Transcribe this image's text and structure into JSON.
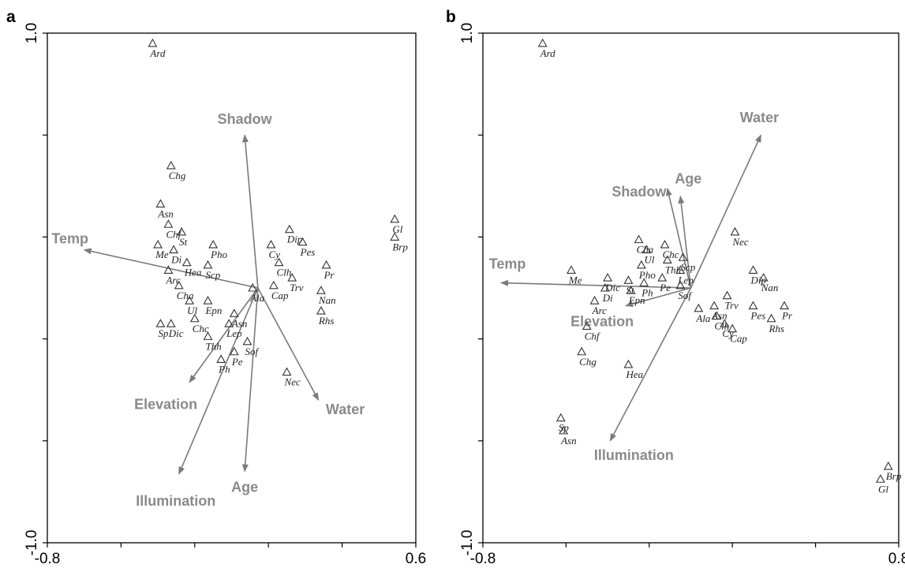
{
  "chart_data": [
    {
      "type": "scatter",
      "panel": "a",
      "xlim": [
        -0.8,
        0.6
      ],
      "ylim": [
        -1.0,
        1.0
      ],
      "x_tick_labels": [
        "-0.8",
        "0.6"
      ],
      "y_tick_labels": [
        "1.0",
        "-1.0"
      ],
      "vectors": [
        {
          "name": "Shadow",
          "x": -0.05,
          "y": 0.6
        },
        {
          "name": "Temp",
          "x": -0.66,
          "y": 0.15
        },
        {
          "name": "Elevation",
          "x": -0.26,
          "y": -0.37
        },
        {
          "name": "Illumination",
          "x": -0.3,
          "y": -0.73
        },
        {
          "name": "Age",
          "x": -0.05,
          "y": -0.72
        },
        {
          "name": "Water",
          "x": 0.23,
          "y": -0.44
        }
      ],
      "species": [
        {
          "label": "Ard",
          "x": -0.4,
          "y": 0.96
        },
        {
          "label": "Chg",
          "x": -0.33,
          "y": 0.48
        },
        {
          "label": "Asn",
          "x": -0.37,
          "y": 0.33
        },
        {
          "label": "Chf",
          "x": -0.34,
          "y": 0.25
        },
        {
          "label": "St",
          "x": -0.29,
          "y": 0.22
        },
        {
          "label": "Me",
          "x": -0.38,
          "y": 0.17
        },
        {
          "label": "Di",
          "x": -0.32,
          "y": 0.15
        },
        {
          "label": "Pho",
          "x": -0.17,
          "y": 0.17
        },
        {
          "label": "Hea",
          "x": -0.27,
          "y": 0.1
        },
        {
          "label": "Scp",
          "x": -0.19,
          "y": 0.09
        },
        {
          "label": "Arc",
          "x": -0.34,
          "y": 0.07
        },
        {
          "label": "Cha",
          "x": -0.3,
          "y": 0.01
        },
        {
          "label": "Ul",
          "x": -0.26,
          "y": -0.05
        },
        {
          "label": "Epn",
          "x": -0.19,
          "y": -0.05
        },
        {
          "label": "Sp",
          "x": -0.37,
          "y": -0.14
        },
        {
          "label": "Dic",
          "x": -0.33,
          "y": -0.14
        },
        {
          "label": "Chc",
          "x": -0.24,
          "y": -0.12
        },
        {
          "label": "Thh",
          "x": -0.19,
          "y": -0.19
        },
        {
          "label": "Lep",
          "x": -0.11,
          "y": -0.14
        },
        {
          "label": "Ph",
          "x": -0.14,
          "y": -0.28
        },
        {
          "label": "Pe",
          "x": -0.09,
          "y": -0.25
        },
        {
          "label": "Ala",
          "x": -0.02,
          "y": 0.0
        },
        {
          "label": "Asn",
          "x": -0.09,
          "y": -0.1
        },
        {
          "label": "Sof",
          "x": -0.04,
          "y": -0.21
        },
        {
          "label": "Cy",
          "x": 0.05,
          "y": 0.17
        },
        {
          "label": "Clh",
          "x": 0.08,
          "y": 0.1
        },
        {
          "label": "Dip",
          "x": 0.12,
          "y": 0.23
        },
        {
          "label": "Pes",
          "x": 0.17,
          "y": 0.18
        },
        {
          "label": "Trv",
          "x": 0.13,
          "y": 0.04
        },
        {
          "label": "Cap",
          "x": 0.06,
          "y": 0.01
        },
        {
          "label": "Pr",
          "x": 0.26,
          "y": 0.09
        },
        {
          "label": "Nan",
          "x": 0.24,
          "y": -0.01
        },
        {
          "label": "Rhs",
          "x": 0.24,
          "y": -0.09
        },
        {
          "label": "Nec",
          "x": 0.11,
          "y": -0.33
        },
        {
          "label": "Gl",
          "x": 0.52,
          "y": 0.27
        },
        {
          "label": "Brp",
          "x": 0.52,
          "y": 0.2
        }
      ]
    },
    {
      "type": "scatter",
      "panel": "b",
      "xlim": [
        -0.8,
        0.8
      ],
      "ylim": [
        -1.0,
        1.0
      ],
      "x_tick_labels": [
        "-0.8",
        "0.8"
      ],
      "y_tick_labels": [
        "1.0",
        "-1.0"
      ],
      "vectors": [
        {
          "name": "Water",
          "x": 0.27,
          "y": 0.6
        },
        {
          "name": "Age",
          "x": -0.04,
          "y": 0.36
        },
        {
          "name": "Shadow",
          "x": -0.09,
          "y": 0.39
        },
        {
          "name": "Temp",
          "x": -0.73,
          "y": 0.02
        },
        {
          "name": "Elevation",
          "x": -0.25,
          "y": -0.07
        },
        {
          "name": "Illumination",
          "x": -0.31,
          "y": -0.6
        }
      ],
      "species": [
        {
          "label": "Ard",
          "x": -0.57,
          "y": 0.96
        },
        {
          "label": "Nec",
          "x": 0.17,
          "y": 0.22
        },
        {
          "label": "Cha",
          "x": -0.2,
          "y": 0.19
        },
        {
          "label": "Chc",
          "x": -0.1,
          "y": 0.17
        },
        {
          "label": "Scp",
          "x": -0.03,
          "y": 0.12
        },
        {
          "label": "Ul",
          "x": -0.17,
          "y": 0.15
        },
        {
          "label": "Thh",
          "x": -0.09,
          "y": 0.11
        },
        {
          "label": "Lep",
          "x": -0.04,
          "y": 0.07
        },
        {
          "label": "Pho",
          "x": -0.19,
          "y": 0.09
        },
        {
          "label": "Me",
          "x": -0.46,
          "y": 0.07
        },
        {
          "label": "Dic",
          "x": -0.32,
          "y": 0.04
        },
        {
          "label": "St",
          "x": -0.24,
          "y": 0.03
        },
        {
          "label": "Ph",
          "x": -0.18,
          "y": 0.02
        },
        {
          "label": "Pe",
          "x": -0.11,
          "y": 0.04
        },
        {
          "label": "Sof",
          "x": -0.04,
          "y": 0.01
        },
        {
          "label": "Di",
          "x": -0.33,
          "y": 0.0
        },
        {
          "label": "Arc",
          "x": -0.37,
          "y": -0.05
        },
        {
          "label": "Epn",
          "x": -0.23,
          "y": -0.01
        },
        {
          "label": "Trv",
          "x": 0.14,
          "y": -0.03
        },
        {
          "label": "Asn",
          "x": 0.09,
          "y": -0.07
        },
        {
          "label": "Ala",
          "x": 0.03,
          "y": -0.08
        },
        {
          "label": "Clh",
          "x": 0.1,
          "y": -0.11
        },
        {
          "label": "Cy",
          "x": 0.13,
          "y": -0.14
        },
        {
          "label": "Cap",
          "x": 0.16,
          "y": -0.16
        },
        {
          "label": "Dip",
          "x": 0.24,
          "y": 0.07
        },
        {
          "label": "Nan",
          "x": 0.28,
          "y": 0.04
        },
        {
          "label": "Pes",
          "x": 0.24,
          "y": -0.07
        },
        {
          "label": "Pr",
          "x": 0.36,
          "y": -0.07
        },
        {
          "label": "Rhs",
          "x": 0.31,
          "y": -0.12
        },
        {
          "label": "Chf",
          "x": -0.4,
          "y": -0.15
        },
        {
          "label": "Chg",
          "x": -0.42,
          "y": -0.25
        },
        {
          "label": "Hea",
          "x": -0.24,
          "y": -0.3
        },
        {
          "label": "Sp",
          "x": -0.5,
          "y": -0.51
        },
        {
          "label": "Asn",
          "x": -0.49,
          "y": -0.56
        },
        {
          "label": "Brp",
          "x": 0.76,
          "y": -0.7
        },
        {
          "label": "Gl",
          "x": 0.73,
          "y": -0.75
        }
      ]
    }
  ]
}
